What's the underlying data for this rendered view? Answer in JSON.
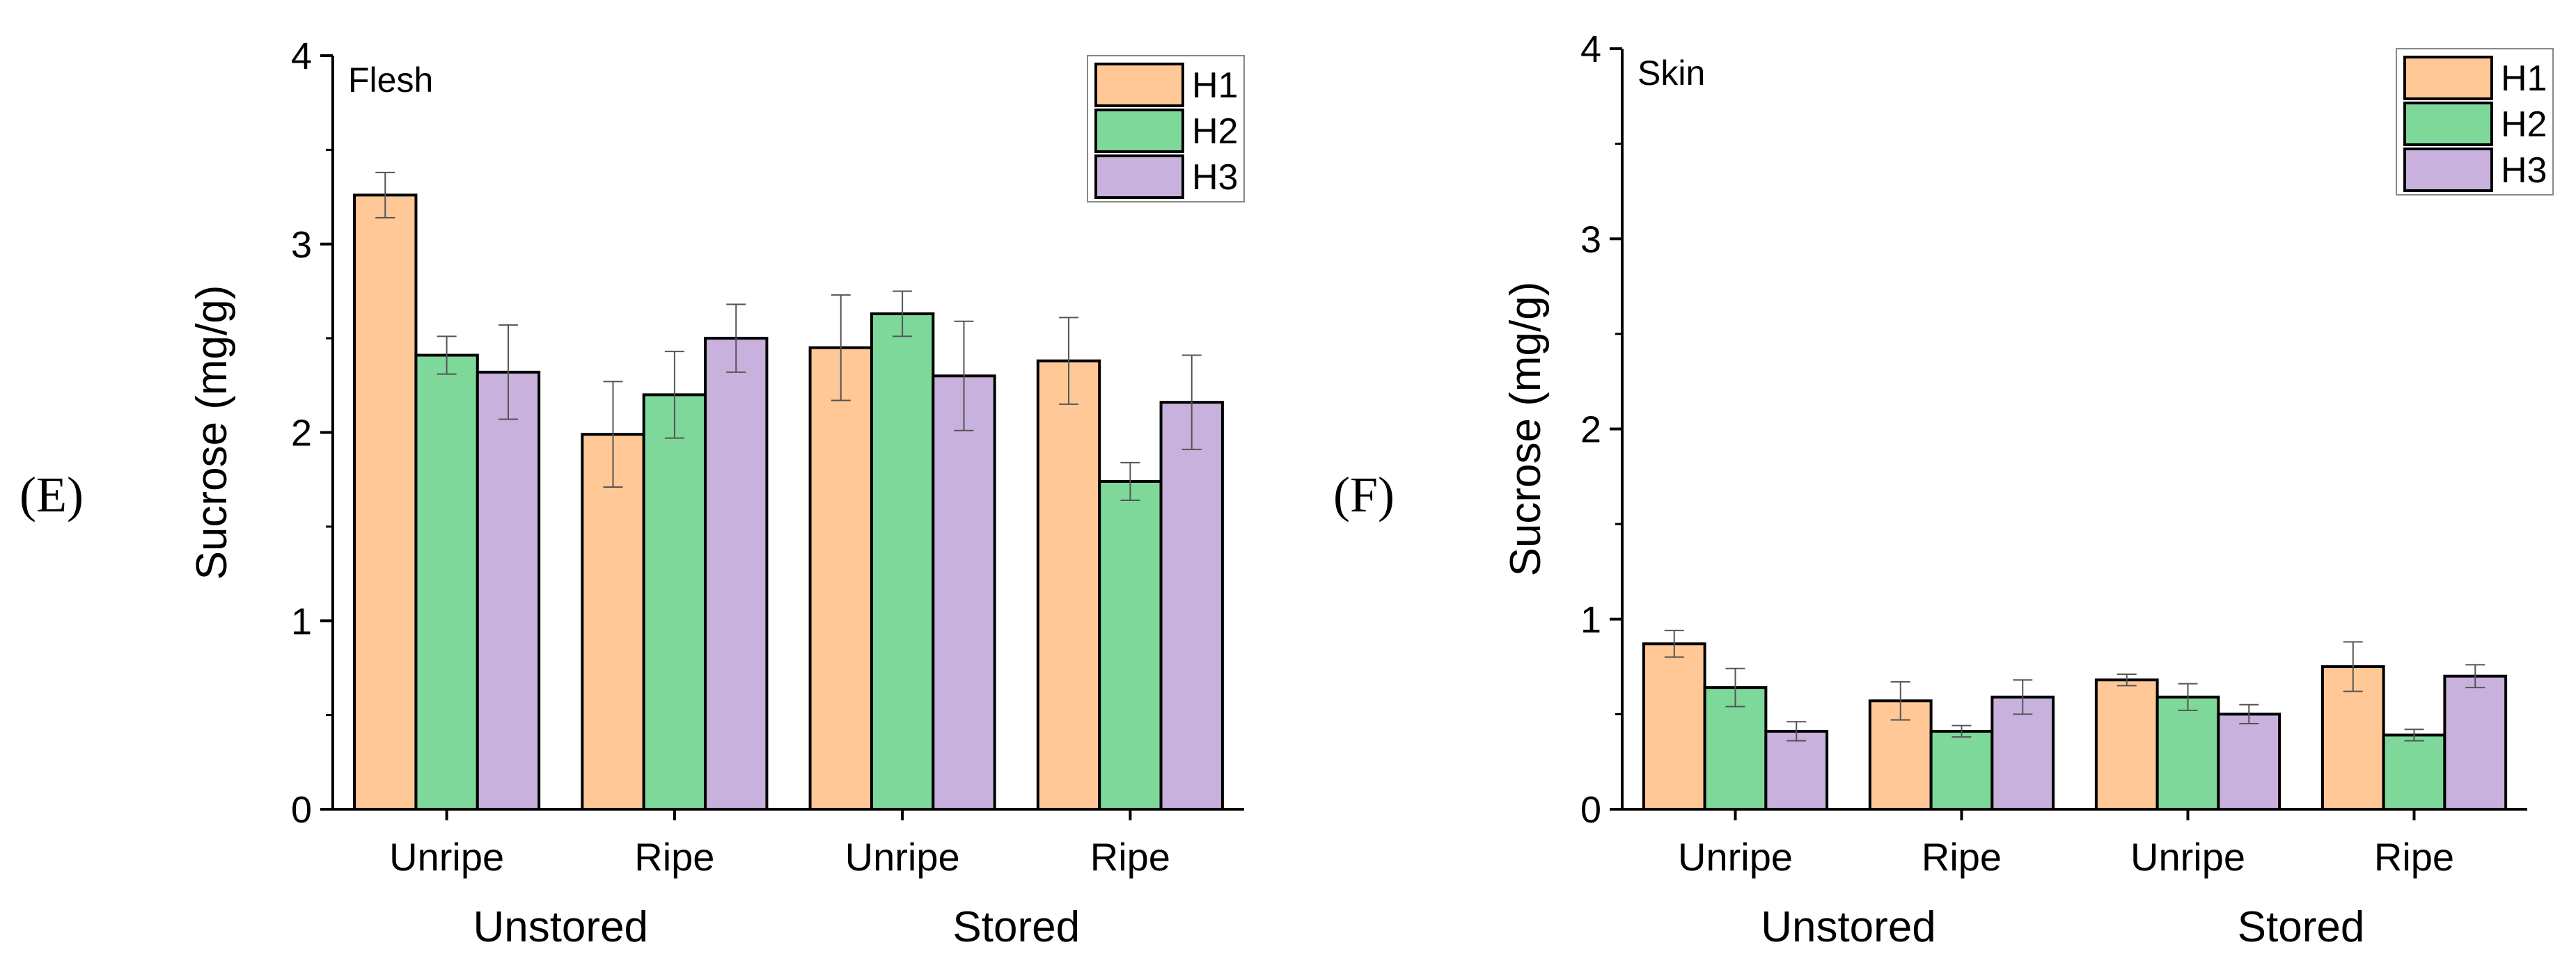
{
  "chart_data": [
    {
      "type": "bar",
      "panel_letter": "(E)",
      "title": "Flesh",
      "ylabel": "Sucrose (mg/g)",
      "ylim": [
        0,
        4
      ],
      "yticks": [
        "0",
        "1",
        "2",
        "3",
        "4"
      ],
      "categories": [
        "Unripe",
        "Ripe",
        "Unripe",
        "Ripe"
      ],
      "groups": [
        "Unstored",
        "Stored"
      ],
      "legend_position": "top-right",
      "series": [
        {
          "name": "H1",
          "color": "#FFC896",
          "values": [
            3.26,
            1.99,
            2.45,
            2.38
          ],
          "errors": [
            0.12,
            0.28,
            0.28,
            0.23
          ]
        },
        {
          "name": "H2",
          "color": "#7ED89A",
          "values": [
            2.41,
            2.2,
            2.63,
            1.74
          ],
          "errors": [
            0.1,
            0.23,
            0.12,
            0.1
          ]
        },
        {
          "name": "H3",
          "color": "#C8B1DC",
          "values": [
            2.32,
            2.5,
            2.3,
            2.16
          ],
          "errors": [
            0.25,
            0.18,
            0.29,
            0.25
          ]
        }
      ]
    },
    {
      "type": "bar",
      "panel_letter": "(F)",
      "title": "Skin",
      "ylabel": "Sucrose (mg/g)",
      "ylim": [
        0,
        4
      ],
      "yticks": [
        "0",
        "1",
        "2",
        "3",
        "4"
      ],
      "categories": [
        "Unripe",
        "Ripe",
        "Unripe",
        "Ripe"
      ],
      "groups": [
        "Unstored",
        "Stored"
      ],
      "legend_position": "top-right",
      "series": [
        {
          "name": "H1",
          "color": "#FFC896",
          "values": [
            0.87,
            0.57,
            0.68,
            0.75
          ],
          "errors": [
            0.07,
            0.1,
            0.03,
            0.13
          ]
        },
        {
          "name": "H2",
          "color": "#7ED89A",
          "values": [
            0.64,
            0.41,
            0.59,
            0.39
          ],
          "errors": [
            0.1,
            0.03,
            0.07,
            0.03
          ]
        },
        {
          "name": "H3",
          "color": "#C8B1DC",
          "values": [
            0.41,
            0.59,
            0.5,
            0.7
          ],
          "errors": [
            0.05,
            0.09,
            0.05,
            0.06
          ]
        }
      ]
    }
  ]
}
